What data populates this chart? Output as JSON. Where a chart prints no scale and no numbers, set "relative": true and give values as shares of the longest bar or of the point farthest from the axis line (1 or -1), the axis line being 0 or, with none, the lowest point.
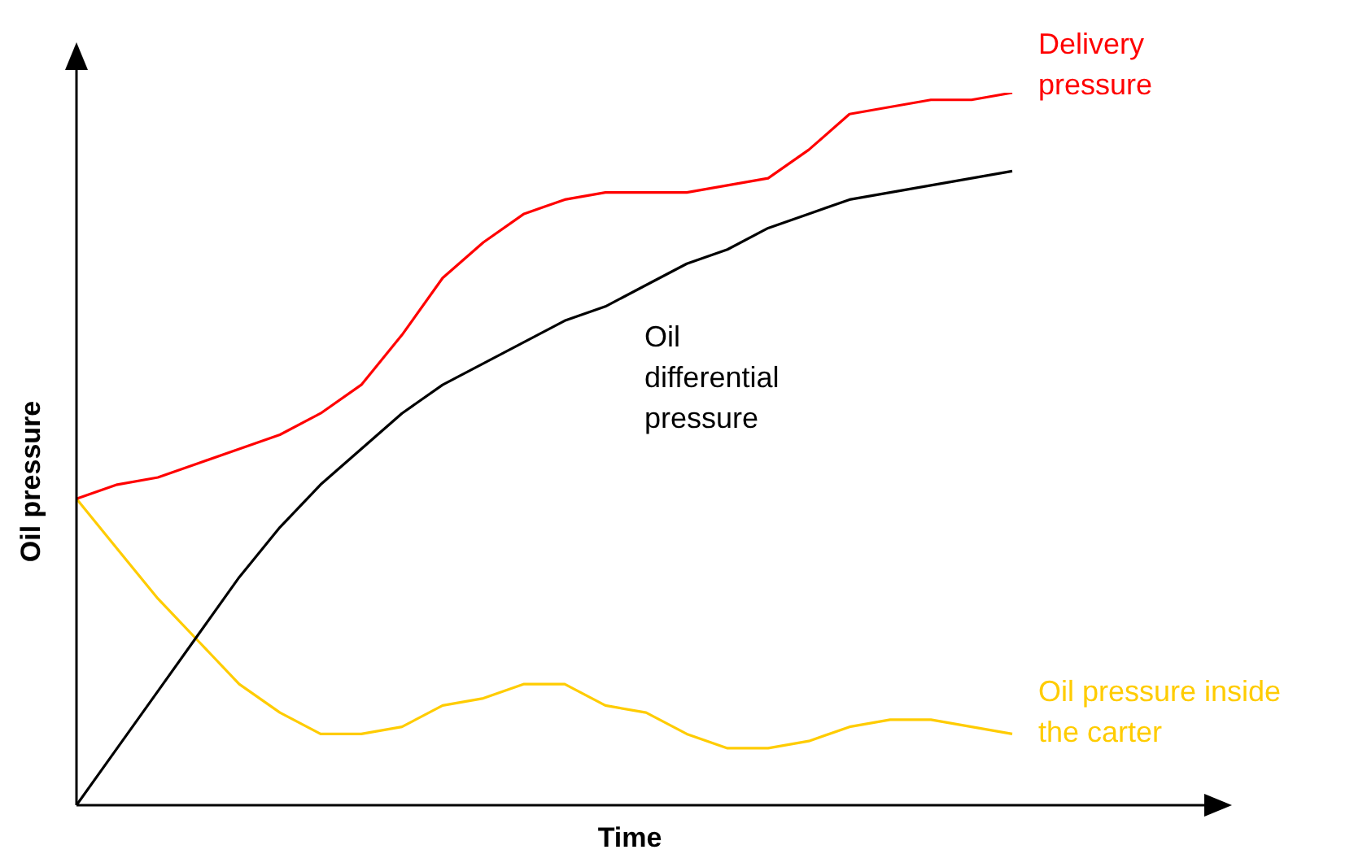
{
  "chart_data": {
    "type": "line",
    "relative": true,
    "xlabel": "Time",
    "ylabel": "Oil pressure",
    "grid": false,
    "legend": false,
    "tick_labels": false,
    "marker": "none",
    "line_style": "solid",
    "categories": [
      null,
      null,
      null,
      null,
      null,
      null,
      null,
      null,
      null,
      null,
      null,
      null,
      null,
      null,
      null,
      null,
      null,
      null,
      null,
      null,
      null,
      null,
      null,
      null,
      null,
      null,
      null,
      null,
      null
    ],
    "series": [
      {
        "name": "Delivery pressure",
        "color": "#ff0000",
        "values": [
          0.43,
          0.45,
          0.46,
          0.48,
          0.5,
          0.52,
          0.55,
          0.59,
          0.66,
          0.74,
          0.79,
          0.83,
          0.85,
          0.86,
          0.86,
          0.86,
          0.87,
          0.88,
          0.92,
          0.97,
          0.98,
          0.99,
          0.99,
          1,
          null,
          null,
          null,
          null,
          null
        ]
      },
      {
        "name": "Oil differential pressure",
        "color": "#000000",
        "values": [
          0,
          0.08,
          0.16,
          0.24,
          0.32,
          0.39,
          0.45,
          0.5,
          0.55,
          0.59,
          0.62,
          0.65,
          0.68,
          0.7,
          0.73,
          0.76,
          0.78,
          0.81,
          0.83,
          0.85,
          0.86,
          0.87,
          0.88,
          0.89,
          null,
          null,
          null,
          null,
          null
        ]
      },
      {
        "name": "Oil pressure inside the carter",
        "color": "#ffcc00",
        "values": [
          0.43,
          0.36,
          0.29,
          0.23,
          0.17,
          0.13,
          0.1,
          0.1,
          0.11,
          0.14,
          0.15,
          0.17,
          0.17,
          0.14,
          0.13,
          0.1,
          0.08,
          0.08,
          0.09,
          0.11,
          0.12,
          0.12,
          0.11,
          0.1,
          null,
          null,
          null,
          null,
          null
        ]
      }
    ]
  }
}
